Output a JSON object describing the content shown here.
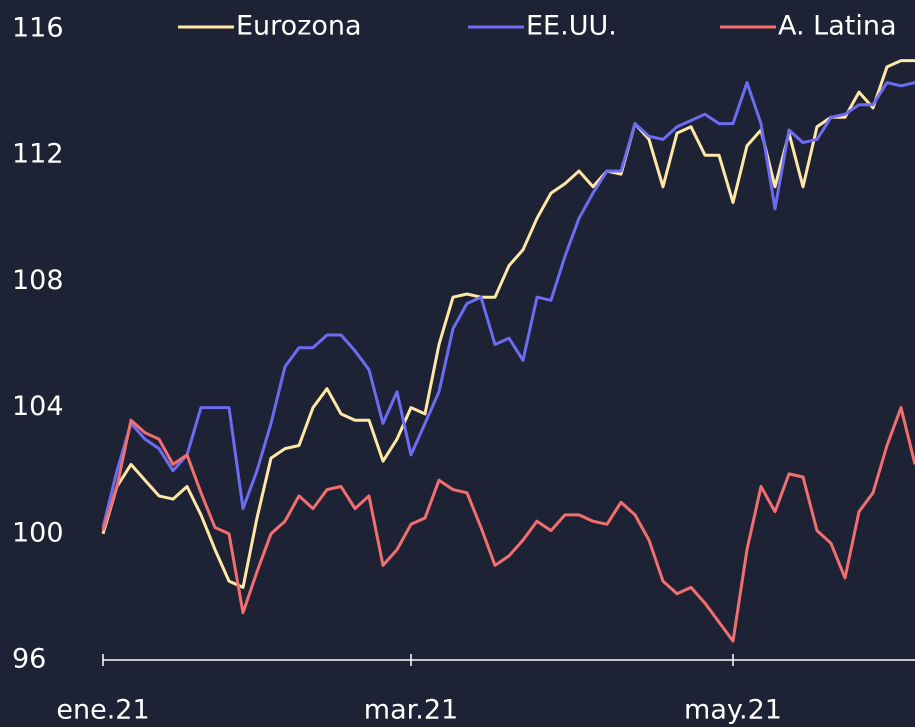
{
  "chart_data": {
    "type": "line",
    "categories": [
      "ene.21",
      null,
      null,
      null,
      null,
      null,
      null,
      null,
      null,
      null,
      null,
      null,
      null,
      null,
      null,
      null,
      null,
      null,
      null,
      null,
      null,
      null,
      "mar.21",
      null,
      null,
      null,
      null,
      null,
      null,
      null,
      null,
      null,
      null,
      null,
      null,
      null,
      null,
      null,
      null,
      null,
      null,
      null,
      null,
      null,
      null,
      "may.21",
      null,
      null,
      null,
      null,
      null,
      null,
      null,
      null,
      null,
      null,
      null,
      null,
      null
    ],
    "series": [
      {
        "name": "Eurozona",
        "color": "#ffe7a6",
        "values": [
          100,
          101.5,
          102.2,
          101.7,
          101.2,
          101.1,
          101.5,
          100.6,
          99.5,
          98.5,
          98.3,
          100.5,
          102.4,
          102.7,
          102.8,
          104,
          104.6,
          103.8,
          103.6,
          103.6,
          102.3,
          103,
          104,
          103.8,
          106,
          107.5,
          107.6,
          107.5,
          107.5,
          108.5,
          109,
          110,
          110.8,
          111.1,
          111.5,
          111,
          111.5,
          111.4,
          113,
          112.5,
          111,
          112.7,
          112.9,
          112,
          112,
          110.5,
          112.3,
          112.8,
          111,
          112.7,
          111,
          112.9,
          113.2,
          113.2,
          114,
          113.5,
          114.8,
          115,
          115
        ]
      },
      {
        "name": "EE.UU.",
        "color": "#6c6cf2",
        "values": [
          100.2,
          102,
          103.5,
          103,
          102.7,
          102,
          102.5,
          104,
          104,
          104,
          100.8,
          102,
          103.5,
          105.3,
          105.9,
          105.9,
          106.3,
          106.3,
          105.8,
          105.2,
          103.5,
          104.5,
          102.5,
          103.5,
          104.5,
          106.5,
          107.3,
          107.5,
          106,
          106.2,
          105.5,
          107.5,
          107.4,
          108.8,
          110,
          110.8,
          111.5,
          111.5,
          113,
          112.6,
          112.5,
          112.9,
          113.1,
          113.3,
          113,
          113,
          114.3,
          113,
          110.3,
          112.8,
          112.4,
          112.5,
          113.2,
          113.3,
          113.6,
          113.6,
          114.3,
          114.2,
          114.3
        ]
      },
      {
        "name": "A. Latina",
        "color": "#f26f70",
        "values": [
          100.1,
          101.5,
          103.6,
          103.2,
          103,
          102.2,
          102.5,
          101.3,
          100.2,
          100,
          97.5,
          98.8,
          100,
          100.4,
          101.2,
          100.8,
          101.4,
          101.5,
          100.8,
          101.2,
          99,
          99.5,
          100.3,
          100.5,
          101.7,
          101.4,
          101.3,
          100.2,
          99,
          99.3,
          99.8,
          100.4,
          100.1,
          100.6,
          100.6,
          100.4,
          100.3,
          101,
          100.6,
          99.8,
          98.5,
          98.1,
          98.3,
          97.8,
          97.2,
          96.6,
          99.5,
          101.5,
          100.7,
          101.9,
          101.8,
          100.1,
          99.7,
          98.6,
          100.7,
          101.3,
          102.8,
          104,
          102.2
        ]
      }
    ],
    "ylim": [
      96,
      116
    ],
    "yticks": [
      96,
      100,
      104,
      108,
      112,
      116
    ],
    "grid": false,
    "legend": "top"
  }
}
